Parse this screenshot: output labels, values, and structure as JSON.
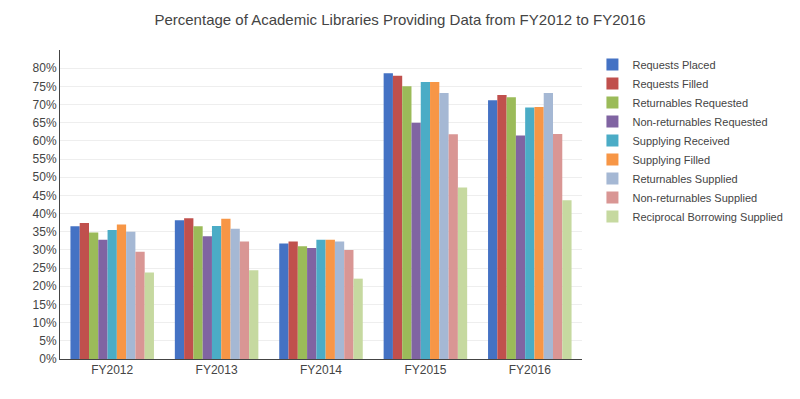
{
  "chart_data": {
    "type": "bar",
    "title": "Percentage of Academic Libraries Providing Data from FY2012 to FY2016",
    "categories": [
      "FY2012",
      "FY2013",
      "FY2014",
      "FY2015",
      "FY2016"
    ],
    "series": [
      {
        "name": "Requests Placed",
        "color": "#4472C4",
        "values": [
          0.365,
          0.382,
          0.318,
          0.786,
          0.712
        ]
      },
      {
        "name": "Requests Filled",
        "color": "#C0504D",
        "values": [
          0.374,
          0.387,
          0.323,
          0.779,
          0.726
        ]
      },
      {
        "name": "Returnables Requested",
        "color": "#9BBB59",
        "values": [
          0.348,
          0.365,
          0.31,
          0.75,
          0.72
        ]
      },
      {
        "name": "Non-returnables Requested",
        "color": "#8064A2",
        "values": [
          0.328,
          0.338,
          0.305,
          0.65,
          0.615
        ]
      },
      {
        "name": "Supplying Received",
        "color": "#4BACC6",
        "values": [
          0.355,
          0.366,
          0.328,
          0.762,
          0.692
        ]
      },
      {
        "name": "Supplying Filled",
        "color": "#F79646",
        "values": [
          0.37,
          0.386,
          0.328,
          0.762,
          0.693
        ]
      },
      {
        "name": "Returnables Supplied",
        "color": "#A5B8D4",
        "values": [
          0.35,
          0.358,
          0.323,
          0.732,
          0.732
        ]
      },
      {
        "name": "Non-returnables Supplied",
        "color": "#D99694",
        "values": [
          0.295,
          0.323,
          0.3,
          0.618,
          0.619
        ]
      },
      {
        "name": "Reciprocal Borrowing Supplied",
        "color": "#C6D9A0",
        "values": [
          0.238,
          0.244,
          0.221,
          0.472,
          0.437
        ]
      }
    ],
    "ylim": [
      0,
      0.85
    ],
    "yticks": [
      {
        "value": 0.0,
        "label": "0%"
      },
      {
        "value": 0.05,
        "label": "5%"
      },
      {
        "value": 0.1,
        "label": "10%"
      },
      {
        "value": 0.15,
        "label": "15%"
      },
      {
        "value": 0.2,
        "label": "20%"
      },
      {
        "value": 0.25,
        "label": "25%"
      },
      {
        "value": 0.3,
        "label": "30%"
      },
      {
        "value": 0.35,
        "label": "35%"
      },
      {
        "value": 0.4,
        "label": "40%"
      },
      {
        "value": 0.45,
        "label": "45%"
      },
      {
        "value": 0.5,
        "label": "50%"
      },
      {
        "value": 0.55,
        "label": "55%"
      },
      {
        "value": 0.6,
        "label": "60%"
      },
      {
        "value": 0.65,
        "label": "65%"
      },
      {
        "value": 0.7,
        "label": "70%"
      },
      {
        "value": 0.75,
        "label": "75%"
      },
      {
        "value": 0.8,
        "label": "80%"
      }
    ],
    "grid": true,
    "legend": "right"
  }
}
